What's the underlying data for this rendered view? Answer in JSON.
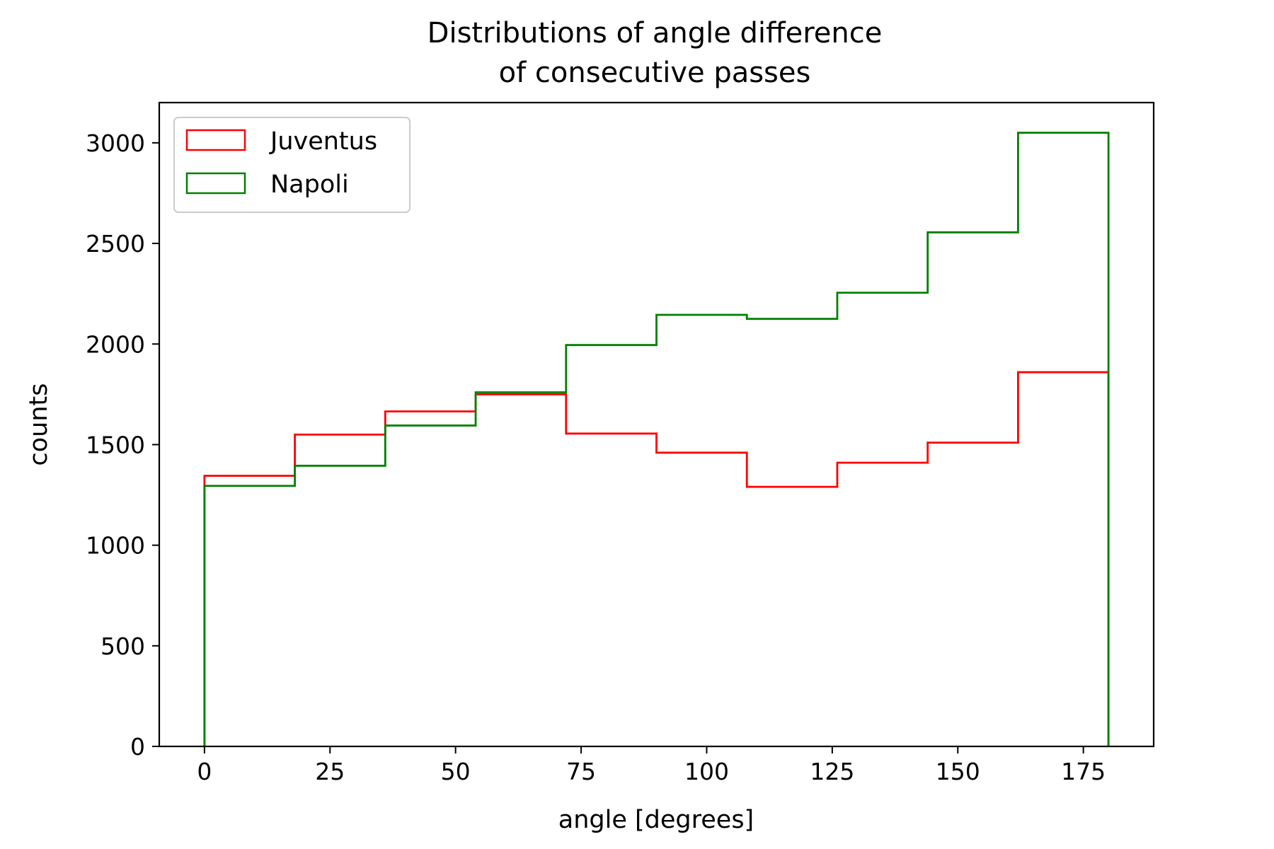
{
  "chart_data": {
    "type": "histogram",
    "title_lines": [
      "Distributions of angle difference",
      "of consecutive passes"
    ],
    "xlabel": "angle [degrees]",
    "ylabel": "counts",
    "xlim": [
      -9,
      189
    ],
    "ylim": [
      0,
      3200
    ],
    "x_ticks": [
      0,
      25,
      50,
      75,
      100,
      125,
      150,
      175
    ],
    "x_tick_labels": [
      "0",
      "25",
      "50",
      "75",
      "100",
      "125",
      "150",
      "175"
    ],
    "y_ticks": [
      0,
      500,
      1000,
      1500,
      2000,
      2500,
      3000
    ],
    "y_tick_labels": [
      "0",
      "500",
      "1000",
      "1500",
      "2000",
      "2500",
      "3000"
    ],
    "bin_edges": [
      0,
      18,
      36,
      54,
      72,
      90,
      108,
      126,
      144,
      162,
      180
    ],
    "grid": false,
    "legend_position": "top-left",
    "series": [
      {
        "name": "Juventus",
        "color": "#ff0000",
        "counts": [
          1345,
          1550,
          1665,
          1750,
          1555,
          1460,
          1290,
          1410,
          1510,
          1860
        ]
      },
      {
        "name": "Napoli",
        "color": "#008000",
        "counts": [
          1295,
          1395,
          1595,
          1760,
          1995,
          2145,
          2125,
          2255,
          2555,
          3050
        ]
      }
    ]
  }
}
